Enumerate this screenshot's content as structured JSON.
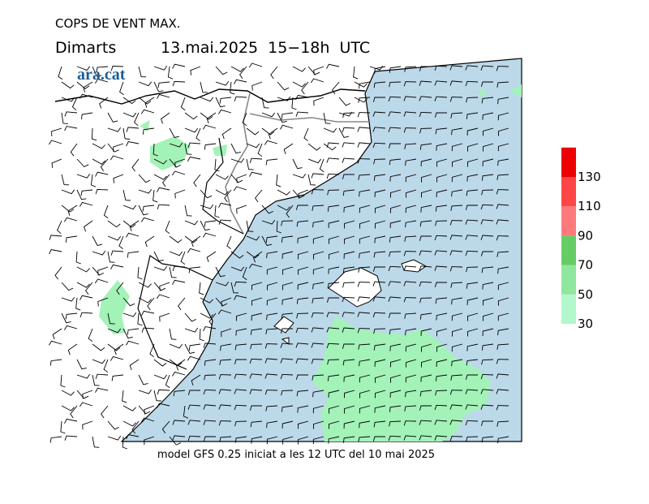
{
  "header": {
    "title": "COPS DE VENT MAX.",
    "day": "Dimarts",
    "date": "13.mai.2025  15−18h  UTC"
  },
  "logo": "ara.cat",
  "footer": "model GFS 0.25 iniciat a les 12 UTC del 10 mai 2025",
  "legend": {
    "ticks": [
      30,
      50,
      70,
      90,
      110,
      130
    ],
    "colors": [
      "#b3f7cc",
      "#8fe79e",
      "#66cc66",
      "#ff7a7a",
      "#ff4646",
      "#ee0000"
    ]
  }
}
